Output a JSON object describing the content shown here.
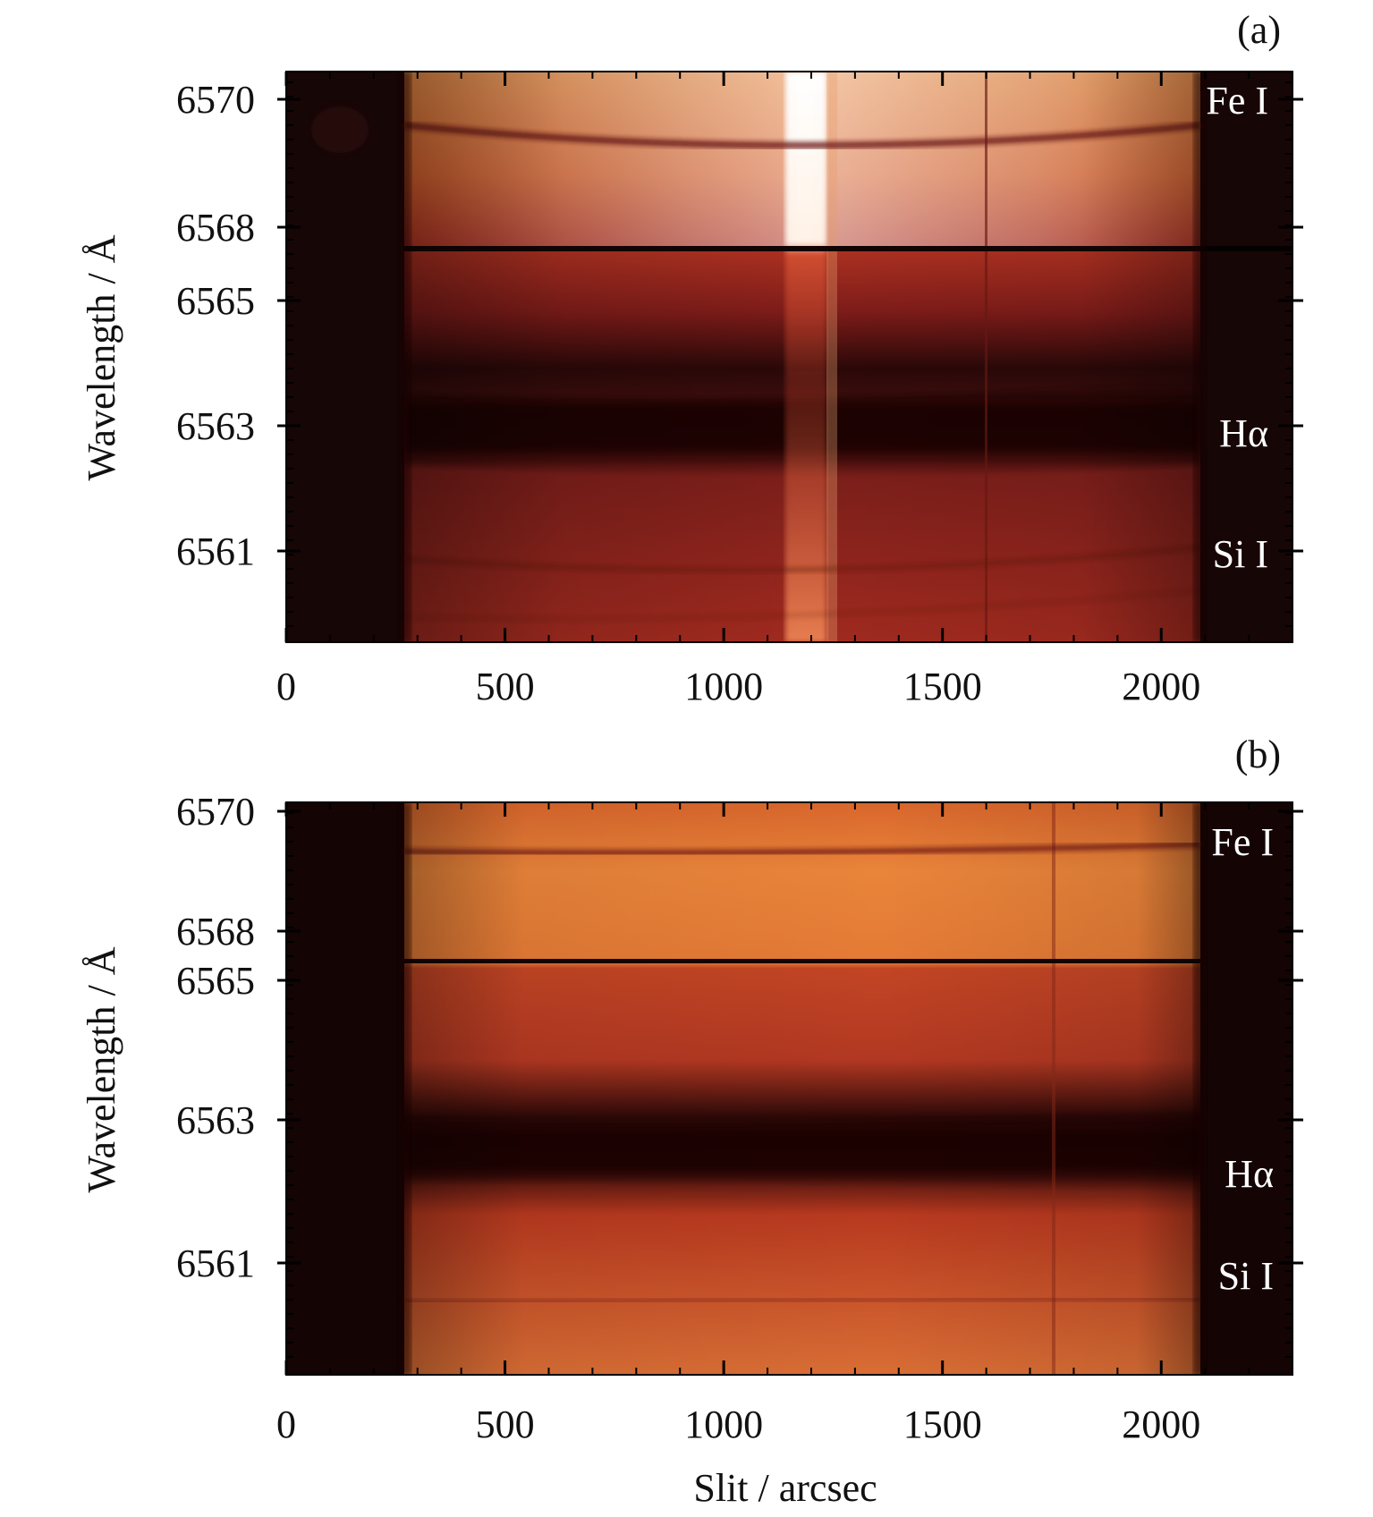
{
  "figure": {
    "xlabel": "Slit / arcsec"
  },
  "chart_data": [
    {
      "type": "heatmap",
      "panel_label": "(a)",
      "xlabel": "",
      "ylabel": "Wavelength / Å",
      "xlim": [
        0,
        2300
      ],
      "xticks": [
        0,
        500,
        1000,
        1500,
        2000
      ],
      "yticks": [
        "6570",
        "6568",
        "6565",
        "6563",
        "6561"
      ],
      "grid": false,
      "colormap": [
        "#140404",
        "#3a0c0c",
        "#7e1d18",
        "#b8361f",
        "#e2702a",
        "#f7b26e",
        "#ffffff"
      ],
      "spectral_lines": [
        {
          "name": "Fe I",
          "tick": "6570"
        },
        {
          "name": "Hα",
          "tick": "6563"
        },
        {
          "name": "Si I",
          "tick": "6561"
        }
      ]
    },
    {
      "type": "heatmap",
      "panel_label": "(b)",
      "xlabel": "Slit / arcsec",
      "ylabel": "Wavelength / Å",
      "xlim": [
        0,
        2300
      ],
      "xticks": [
        0,
        500,
        1000,
        1500,
        2000
      ],
      "yticks": [
        "6570",
        "6568",
        "6565",
        "6563",
        "6561"
      ],
      "grid": false,
      "colormap": [
        "#140404",
        "#3a0c0c",
        "#7e1d18",
        "#b8361f",
        "#e2702a",
        "#f7b26e",
        "#ffffff"
      ],
      "spectral_lines": [
        {
          "name": "Fe I",
          "tick": "6570"
        },
        {
          "name": "Hα",
          "tick": "6563"
        },
        {
          "name": "Si I",
          "tick": "6561"
        }
      ]
    }
  ]
}
